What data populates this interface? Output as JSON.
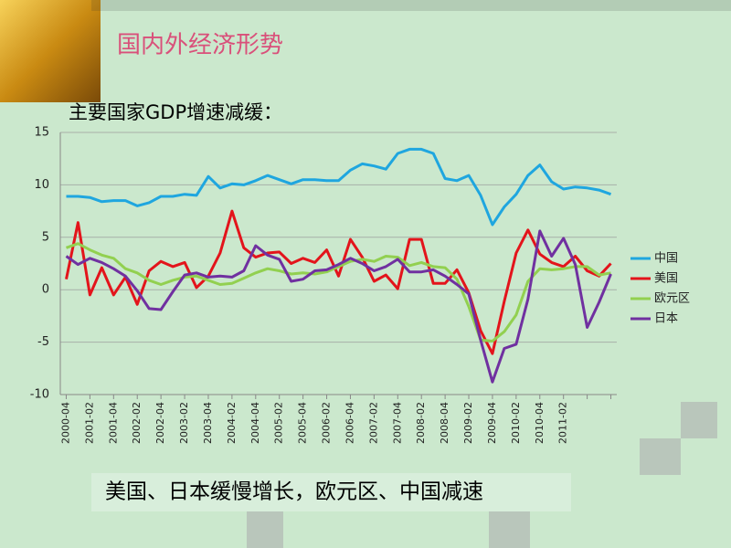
{
  "slide": {
    "title": "国内外经济形势",
    "caption": "美国、日本缓慢增长，欧元区、中国减速"
  },
  "chart_data": {
    "type": "line",
    "title": "主要国家GDP增速减缓：",
    "categories": [
      "2000-04",
      null,
      "2001-02",
      null,
      "2001-04",
      null,
      "2002-02",
      null,
      "2002-04",
      null,
      "2003-02",
      null,
      "2003-04",
      null,
      "2004-02",
      null,
      "2004-04",
      null,
      "2005-02",
      null,
      "2005-04",
      null,
      "2006-02",
      null,
      "2006-04",
      null,
      "2007-02",
      null,
      "2007-04",
      null,
      "2008-02",
      null,
      "2008-04",
      null,
      "2009-02",
      null,
      "2009-04",
      null,
      "2010-02",
      null,
      "2010-04",
      null,
      "2011-02",
      null,
      null,
      null,
      null
    ],
    "series": [
      {
        "name": "中国",
        "color": "#1fa6df",
        "values": [
          8.9,
          8.9,
          8.8,
          8.4,
          8.5,
          8.5,
          8.0,
          8.3,
          8.9,
          8.9,
          9.1,
          9.0,
          10.8,
          9.7,
          10.1,
          10.0,
          10.4,
          10.9,
          10.5,
          10.1,
          10.5,
          10.5,
          10.4,
          10.4,
          11.4,
          12.0,
          11.8,
          11.5,
          13.0,
          13.4,
          13.4,
          13.0,
          10.6,
          10.4,
          10.9,
          9.0,
          6.2,
          7.9,
          9.1,
          10.9,
          11.9,
          10.3,
          9.6,
          9.8,
          9.7,
          9.5,
          9.1
        ]
      },
      {
        "name": "美国",
        "color": "#e3141b",
        "values": [
          1.0,
          6.4,
          -0.5,
          2.1,
          -0.5,
          1.2,
          -1.4,
          1.8,
          2.7,
          2.2,
          2.6,
          0.2,
          1.3,
          3.5,
          7.5,
          4.0,
          3.1,
          3.5,
          3.6,
          2.5,
          3.0,
          2.6,
          3.8,
          1.3,
          4.8,
          3.1,
          0.8,
          1.4,
          0.1,
          4.8,
          4.8,
          0.6,
          0.6,
          1.9,
          -0.3,
          -3.9,
          -6.1,
          -1.1,
          3.5,
          5.7,
          3.4,
          2.6,
          2.2,
          3.2,
          1.8,
          1.3,
          2.5
        ]
      },
      {
        "name": "欧元区",
        "color": "#92d050",
        "values": [
          4.0,
          4.4,
          3.8,
          3.3,
          3.0,
          2.0,
          1.6,
          0.9,
          0.5,
          0.9,
          1.2,
          1.3,
          0.9,
          0.5,
          0.6,
          1.1,
          1.6,
          2.0,
          1.8,
          1.5,
          1.6,
          1.5,
          1.7,
          2.2,
          2.7,
          2.9,
          2.7,
          3.2,
          3.1,
          2.3,
          2.6,
          2.2,
          2.1,
          1.0,
          -1.6,
          -4.8,
          -4.9,
          -4.0,
          -2.4,
          0.8,
          2.0,
          1.9,
          2.0,
          2.2,
          2.2,
          1.4,
          1.6
        ]
      },
      {
        "name": "日本",
        "color": "#7030a0",
        "values": [
          3.2,
          2.4,
          3.0,
          2.6,
          2.0,
          1.3,
          -0.1,
          -1.8,
          -1.9,
          -0.2,
          1.4,
          1.6,
          1.2,
          1.3,
          1.2,
          1.8,
          4.2,
          3.3,
          2.9,
          0.8,
          1.0,
          1.8,
          1.9,
          2.4,
          3.0,
          2.5,
          1.8,
          2.2,
          2.9,
          1.7,
          1.7,
          1.9,
          1.3,
          0.5,
          -0.4,
          -4.8,
          -8.8,
          -5.6,
          -5.2,
          -0.9,
          5.6,
          3.2,
          4.9,
          2.4,
          -3.6,
          -1.2,
          1.5
        ]
      }
    ],
    "ylim": [
      -10,
      15
    ],
    "yticks": [
      -10,
      -5,
      0,
      5,
      10,
      15
    ],
    "grid": true,
    "legend": "right"
  }
}
